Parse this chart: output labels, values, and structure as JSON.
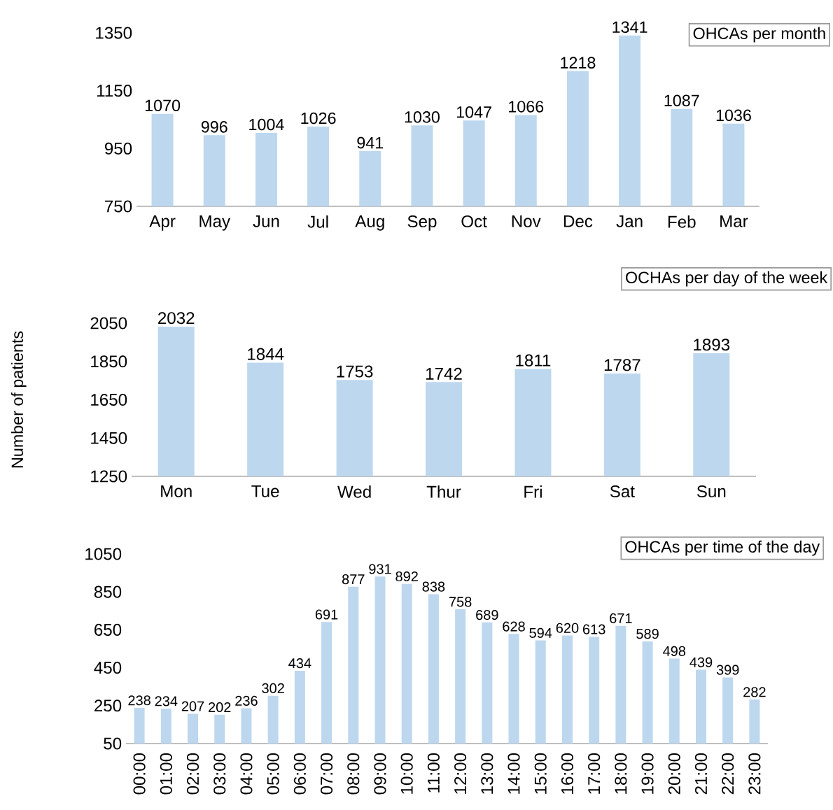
{
  "chart_data": [
    {
      "type": "bar",
      "title": "OHCAs per month",
      "categories": [
        "Apr",
        "May",
        "Jun",
        "Jul",
        "Aug",
        "Sep",
        "Oct",
        "Nov",
        "Dec",
        "Jan",
        "Feb",
        "Mar"
      ],
      "values": [
        1070,
        996,
        1004,
        1026,
        941,
        1030,
        1047,
        1066,
        1218,
        1341,
        1087,
        1036
      ],
      "color": "#bdd7ee",
      "ylim": [
        750,
        1350
      ],
      "yticks": [
        750,
        950,
        1150,
        1350
      ],
      "data_labels": true
    },
    {
      "type": "bar",
      "title": "OCHAs per day of the week",
      "ylabel": "Number of patients",
      "categories": [
        "Mon",
        "Tue",
        "Wed",
        "Thur",
        "Fri",
        "Sat",
        "Sun"
      ],
      "values": [
        2032,
        1844,
        1753,
        1742,
        1811,
        1787,
        1893
      ],
      "color": "#bdd7ee",
      "ylim": [
        1250,
        2050
      ],
      "yticks": [
        1250,
        1450,
        1650,
        1850,
        2050
      ],
      "data_labels": true
    },
    {
      "type": "bar",
      "title": "OHCAs per time of the day",
      "categories": [
        "00:00",
        "01:00",
        "02:00",
        "03:00",
        "04:00",
        "05:00",
        "06:00",
        "07:00",
        "08:00",
        "09:00",
        "10:00",
        "11:00",
        "12:00",
        "13:00",
        "14:00",
        "15:00",
        "16:00",
        "17:00",
        "18:00",
        "19:00",
        "20:00",
        "21:00",
        "22:00",
        "23:00"
      ],
      "values": [
        238,
        234,
        207,
        202,
        236,
        302,
        434,
        691,
        877,
        931,
        892,
        838,
        758,
        689,
        628,
        594,
        620,
        613,
        671,
        589,
        498,
        439,
        399,
        282
      ],
      "color": "#bdd7ee",
      "ylim": [
        50,
        1050
      ],
      "yticks": [
        50,
        250,
        450,
        650,
        850,
        1050
      ],
      "data_labels": true
    }
  ]
}
